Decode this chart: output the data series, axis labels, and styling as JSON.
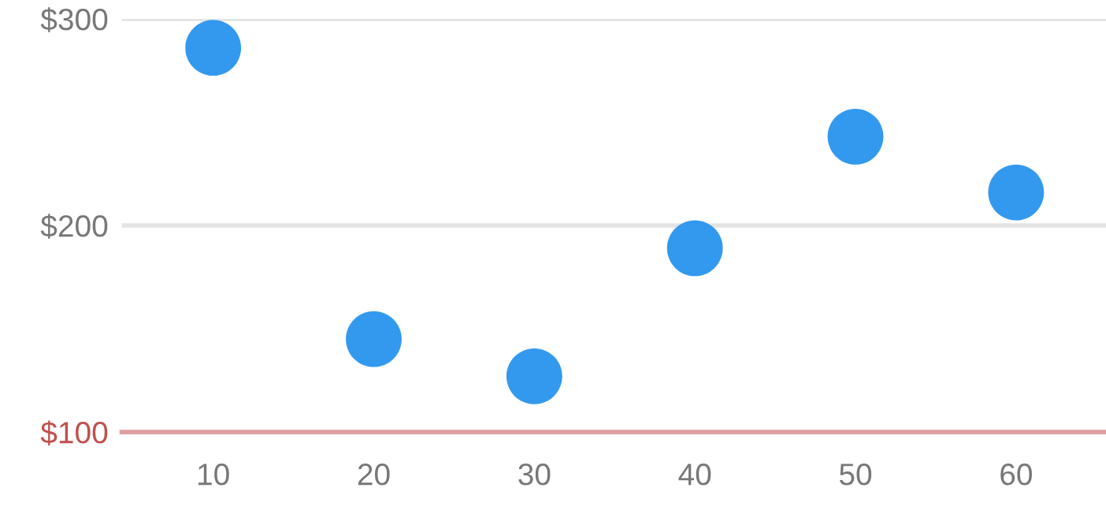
{
  "chart_data": {
    "type": "scatter",
    "x": [
      10,
      20,
      30,
      40,
      50,
      60
    ],
    "series": [
      {
        "color": "#3399ee",
        "values": [
          286,
          145,
          127,
          189,
          243,
          216
        ]
      }
    ],
    "xlim": [
      4.3,
      65.6
    ],
    "xticks": [
      10,
      20,
      30,
      40,
      50,
      60
    ],
    "ylim": [
      100,
      300
    ],
    "yticks": [
      {
        "value": 100,
        "label": "$100"
      },
      {
        "value": 200,
        "label": "$200"
      },
      {
        "value": 300,
        "label": "$300"
      }
    ],
    "grid": "y",
    "marker": "circle"
  }
}
